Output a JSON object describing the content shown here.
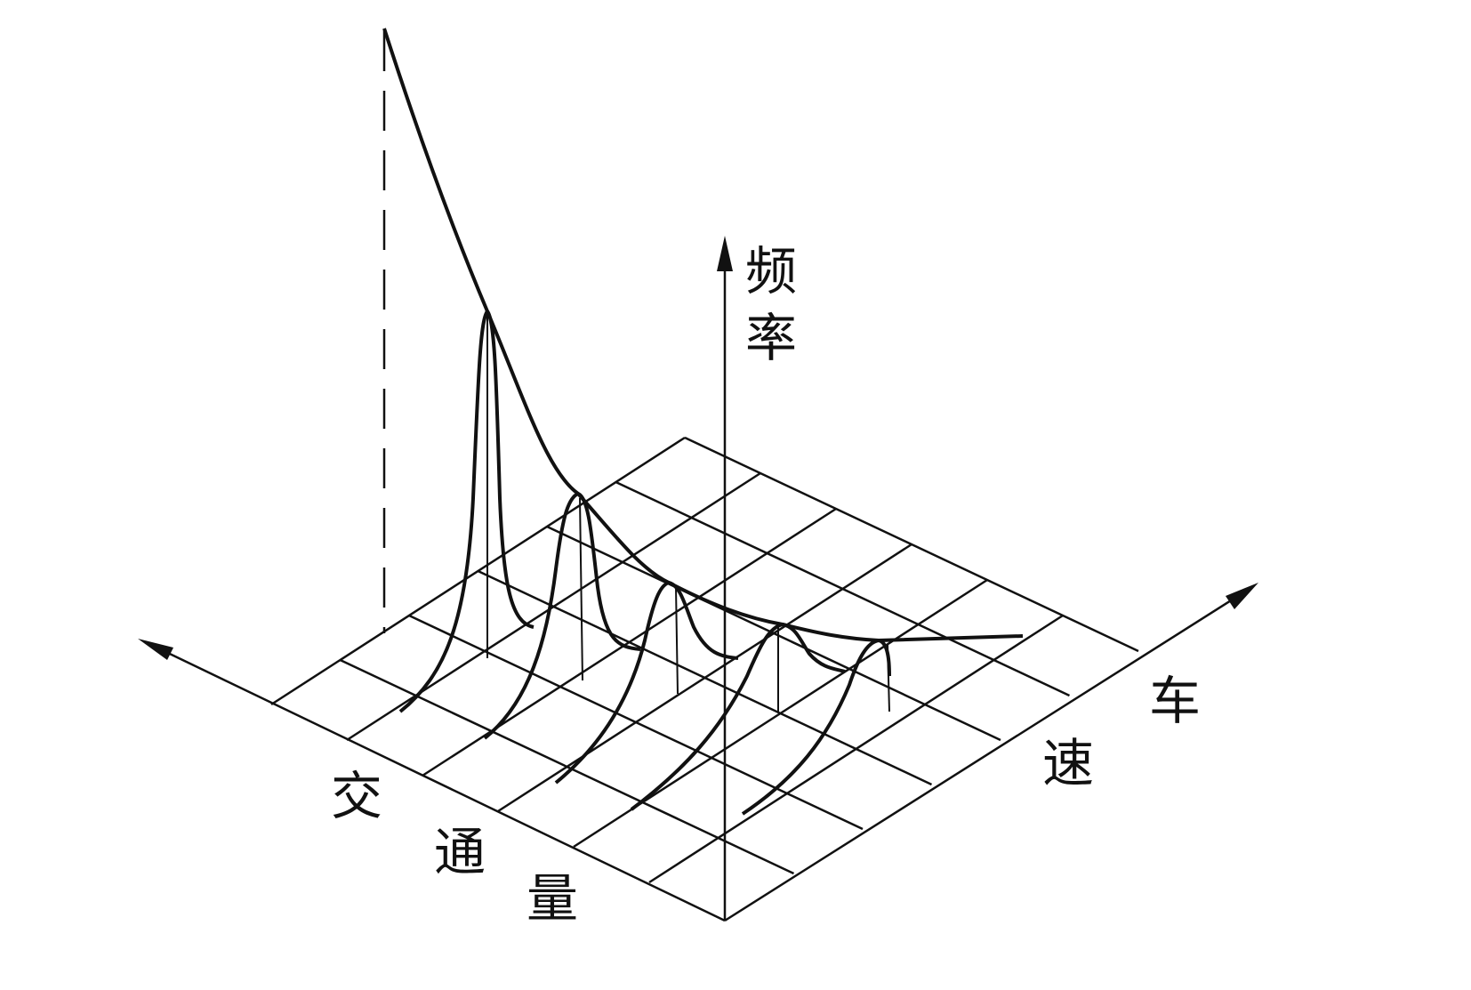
{
  "axes": {
    "vertical_label": [
      "频",
      "率"
    ],
    "left_label": [
      "交",
      "通",
      "量"
    ],
    "right_label": [
      "车",
      "速"
    ]
  },
  "colors": {
    "ink": "#111111",
    "background": "#ffffff"
  },
  "grid": {
    "divisions_left": 6,
    "divisions_right": 6
  },
  "peaks_count": 5
}
